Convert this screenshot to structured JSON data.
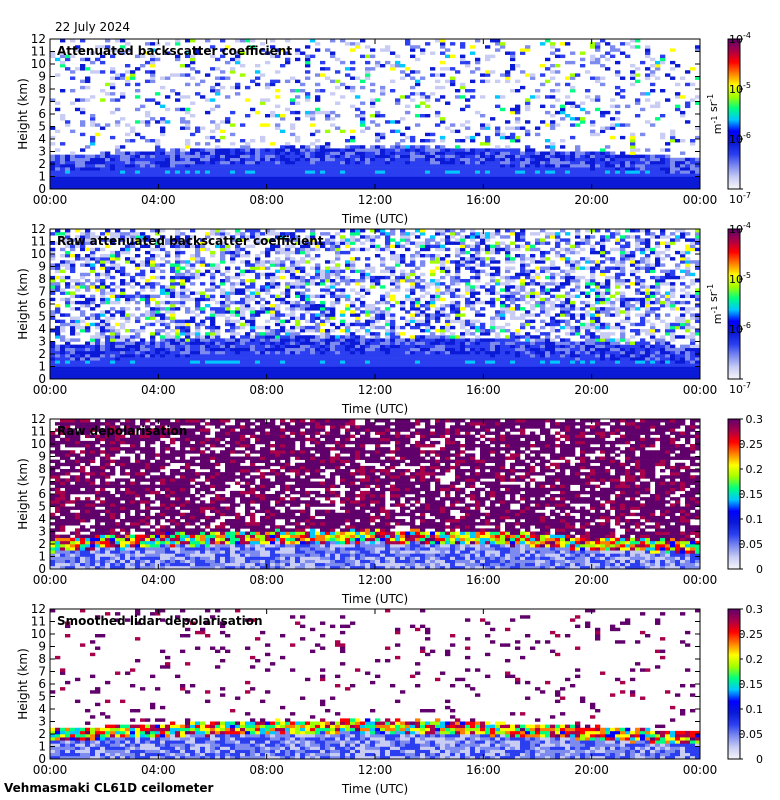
{
  "date": "22 July 2024",
  "site": "Vehmasmaki CL61D ceilometer",
  "colormap": [
    "#f6f6fa",
    "#c9cdf4",
    "#7d8bef",
    "#2b3ff0",
    "#0a1ad6",
    "#0000ff",
    "#00c8ff",
    "#00ff80",
    "#a0ff00",
    "#ffff00",
    "#ff8000",
    "#ff0000",
    "#a8004a",
    "#60006a"
  ],
  "chart_data": [
    {
      "type": "heatmap",
      "title": "Attenuated backscatter coefficient",
      "xlabel": "Time (UTC)",
      "ylabel": "Height (km)",
      "x_ticks": [
        "00:00",
        "04:00",
        "08:00",
        "12:00",
        "16:00",
        "20:00",
        "00:00"
      ],
      "y_ticks": [
        "0",
        "1",
        "2",
        "3",
        "4",
        "5",
        "6",
        "7",
        "8",
        "9",
        "10",
        "11",
        "12"
      ],
      "ylim": [
        0,
        12
      ],
      "colorbar": {
        "scale": "log",
        "range": [
          1e-07,
          0.0001
        ],
        "ticks": [
          "10-7",
          "10-6",
          "10-5",
          "10-4"
        ],
        "unit": "m-1 sr-1"
      }
    },
    {
      "type": "heatmap",
      "title": "Raw attenuated backscatter coefficient",
      "xlabel": "Time (UTC)",
      "ylabel": "Height (km)",
      "x_ticks": [
        "00:00",
        "04:00",
        "08:00",
        "12:00",
        "16:00",
        "20:00",
        "00:00"
      ],
      "y_ticks": [
        "0",
        "1",
        "2",
        "3",
        "4",
        "5",
        "6",
        "7",
        "8",
        "9",
        "10",
        "11",
        "12"
      ],
      "ylim": [
        0,
        12
      ],
      "colorbar": {
        "scale": "log",
        "range": [
          1e-07,
          0.0001
        ],
        "ticks": [
          "10-7",
          "10-6",
          "10-5",
          "10-4"
        ],
        "unit": "m-1 sr-1"
      }
    },
    {
      "type": "heatmap",
      "title": "Raw depolarisation",
      "xlabel": "Time (UTC)",
      "ylabel": "Height (km)",
      "x_ticks": [
        "00:00",
        "04:00",
        "08:00",
        "12:00",
        "16:00",
        "20:00",
        "00:00"
      ],
      "y_ticks": [
        "0",
        "1",
        "2",
        "3",
        "4",
        "5",
        "6",
        "7",
        "8",
        "9",
        "10",
        "11",
        "12"
      ],
      "ylim": [
        0,
        12
      ],
      "colorbar": {
        "scale": "linear",
        "range": [
          0,
          0.3
        ],
        "ticks": [
          "0",
          "0.05",
          "0.1",
          "0.15",
          "0.2",
          "0.25",
          "0.3"
        ],
        "unit": ""
      }
    },
    {
      "type": "heatmap",
      "title": "Smoothed lidar depolarisation",
      "xlabel": "Time (UTC)",
      "ylabel": "Height (km)",
      "x_ticks": [
        "00:00",
        "04:00",
        "08:00",
        "12:00",
        "16:00",
        "20:00",
        "00:00"
      ],
      "y_ticks": [
        "0",
        "1",
        "2",
        "3",
        "4",
        "5",
        "6",
        "7",
        "8",
        "9",
        "10",
        "11",
        "12"
      ],
      "ylim": [
        0,
        12
      ],
      "colorbar": {
        "scale": "linear",
        "range": [
          0,
          0.3
        ],
        "ticks": [
          "0",
          "0.05",
          "0.1",
          "0.15",
          "0.2",
          "0.25",
          "0.3"
        ],
        "unit": ""
      }
    }
  ]
}
